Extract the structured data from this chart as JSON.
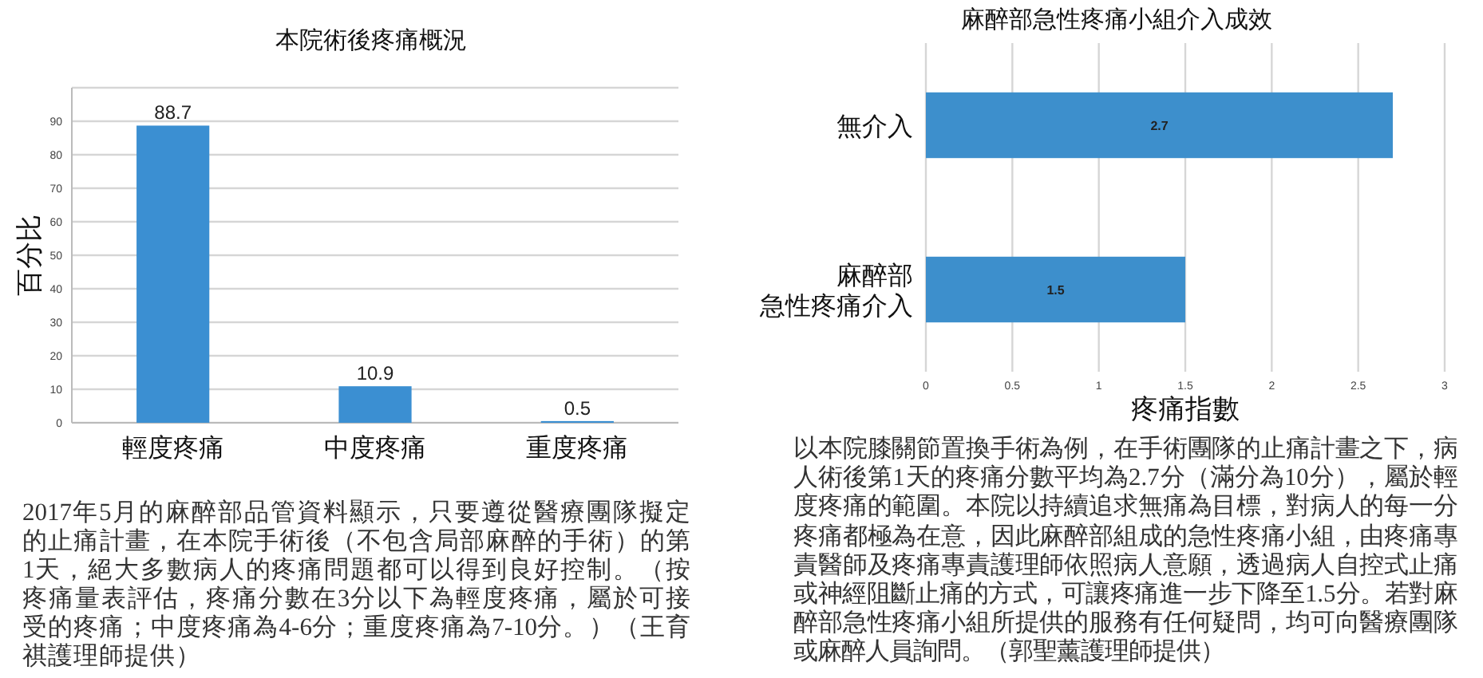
{
  "chart_data": [
    {
      "type": "bar",
      "title": "本院術後疼痛概況",
      "ylabel": "百分比",
      "categories": [
        "輕度疼痛",
        "中度疼痛",
        "重度疼痛"
      ],
      "values": [
        88.7,
        10.9,
        0.5
      ],
      "color": "#3b8fd2",
      "ylim": [
        0,
        100
      ],
      "yticks": [
        0,
        10,
        20,
        30,
        40,
        50,
        60,
        70,
        80,
        90,
        {
          "value": 100,
          "label": null
        }
      ],
      "grid": "y",
      "data_labels": true,
      "annotations": [
        "2017年5月的麻醉部品管資料顯示，只要遵從醫療團隊擬定的止痛計畫，在本院手術後（不包含局部麻醉的手術）的第1天，絕大多數病人的疼痛問題都可以得到良好控制。（按疼痛量表評估，疼痛分數在3分以下為輕度疼痛，屬於可接受的疼痛；中度疼痛為4-6分；重度疼痛為7-10分。）（王育祺護理師提供）"
      ]
    },
    {
      "type": "bar",
      "orientation": "horizontal",
      "title": "麻醉部急性疼痛小組介入成效",
      "xlabel": "疼痛指數",
      "categories": [
        "無介入",
        "麻醉部急性疼痛介入"
      ],
      "values": [
        2.7,
        1.5
      ],
      "color": "#3d8fcc",
      "xlim": [
        0,
        3
      ],
      "xticks": [
        0,
        0.5,
        1,
        1.5,
        2,
        2.5,
        3
      ],
      "grid": "x",
      "data_labels": true,
      "annotations": [
        "以本院膝關節置換手術為例，在手術團隊的止痛計畫之下，病人術後第1天的疼痛分數平均為2.7分（滿分為10分），屬於輕度疼痛的範圍。本院以持續追求無痛為目標，對病人的每一分疼痛都極為在意，因此麻醉部組成的急性疼痛小組，由疼痛專責醫師及疼痛專責護理師依照病人意願，透過病人自控式止痛或神經阻斷止痛的方式，可讓疼痛進一步下降至1.5分。若對麻醉部急性疼痛小組所提供的服務有任何疑問，均可向醫療團隊或麻醉人員詢問。（郭聖薰護理師提供）"
      ]
    }
  ]
}
